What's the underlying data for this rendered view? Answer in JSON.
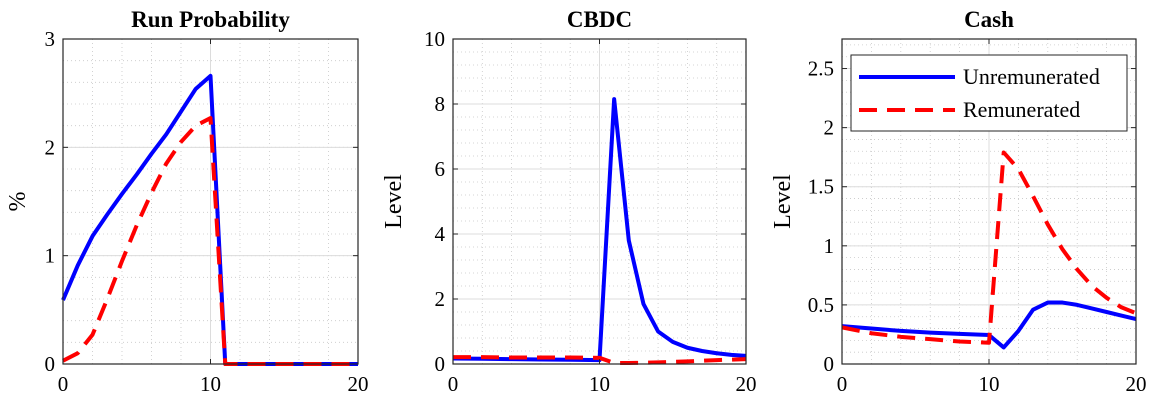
{
  "colors": {
    "unremunerated": "#0000ff",
    "remunerated": "#ff0000"
  },
  "legend": {
    "entries": [
      "Unremunerated",
      "Remunerated"
    ],
    "placement": "top-right",
    "panel": 2
  },
  "chart_data": [
    {
      "type": "line",
      "title": "Run Probability",
      "xlabel": "",
      "ylabel": "%",
      "xlim": [
        0,
        20
      ],
      "ylim": [
        0,
        3
      ],
      "xticks": [
        0,
        10,
        20
      ],
      "yticks": [
        0,
        1,
        2,
        3
      ],
      "yticklabels": [
        "0",
        "1",
        "2",
        "3"
      ],
      "grid": true,
      "series": [
        {
          "name": "Unremunerated",
          "style": "solid",
          "points": [
            [
              0,
              0.59
            ],
            [
              1,
              0.91
            ],
            [
              2,
              1.18
            ],
            [
              3,
              1.38
            ],
            [
              4,
              1.57
            ],
            [
              5,
              1.75
            ],
            [
              6,
              1.94
            ],
            [
              7,
              2.12
            ],
            [
              8,
              2.33
            ],
            [
              9,
              2.54
            ],
            [
              10,
              2.66
            ],
            [
              11,
              0
            ],
            [
              12,
              0
            ],
            [
              13,
              0
            ],
            [
              14,
              0
            ],
            [
              15,
              0
            ],
            [
              16,
              0
            ],
            [
              17,
              0
            ],
            [
              18,
              0
            ],
            [
              19,
              0
            ],
            [
              20,
              0
            ]
          ]
        },
        {
          "name": "Remunerated",
          "style": "dashed",
          "points": [
            [
              0,
              0.03
            ],
            [
              1,
              0.1
            ],
            [
              2,
              0.27
            ],
            [
              3,
              0.6
            ],
            [
              4,
              0.95
            ],
            [
              5,
              1.28
            ],
            [
              6,
              1.58
            ],
            [
              7,
              1.85
            ],
            [
              8,
              2.05
            ],
            [
              9,
              2.2
            ],
            [
              10,
              2.27
            ],
            [
              11,
              0
            ],
            [
              12,
              0
            ],
            [
              13,
              0
            ],
            [
              14,
              0
            ],
            [
              15,
              0
            ],
            [
              16,
              0
            ],
            [
              17,
              0
            ],
            [
              18,
              0
            ],
            [
              19,
              0
            ],
            [
              20,
              0
            ]
          ]
        }
      ]
    },
    {
      "type": "line",
      "title": "CBDC",
      "xlabel": "",
      "ylabel": "Level",
      "xlim": [
        0,
        20
      ],
      "ylim": [
        0,
        10
      ],
      "xticks": [
        0,
        10,
        20
      ],
      "yticks": [
        0,
        2,
        4,
        6,
        8,
        10
      ],
      "yticklabels": [
        "0",
        "2",
        "4",
        "6",
        "8",
        "10"
      ],
      "grid": true,
      "series": [
        {
          "name": "Unremunerated",
          "style": "solid",
          "points": [
            [
              0,
              0.17
            ],
            [
              2,
              0.16
            ],
            [
              4,
              0.15
            ],
            [
              6,
              0.14
            ],
            [
              8,
              0.13
            ],
            [
              10,
              0.12
            ],
            [
              11,
              8.15
            ],
            [
              12,
              3.8
            ],
            [
              13,
              1.85
            ],
            [
              14,
              1.0
            ],
            [
              15,
              0.68
            ],
            [
              16,
              0.5
            ],
            [
              17,
              0.4
            ],
            [
              18,
              0.33
            ],
            [
              19,
              0.28
            ],
            [
              20,
              0.25
            ]
          ]
        },
        {
          "name": "Remunerated",
          "style": "dashed",
          "points": [
            [
              0,
              0.21
            ],
            [
              2,
              0.21
            ],
            [
              4,
              0.2
            ],
            [
              6,
              0.2
            ],
            [
              8,
              0.2
            ],
            [
              10,
              0.19
            ],
            [
              11,
              0.03
            ],
            [
              12,
              0.03
            ],
            [
              14,
              0.05
            ],
            [
              16,
              0.08
            ],
            [
              18,
              0.12
            ],
            [
              20,
              0.15
            ]
          ]
        }
      ]
    },
    {
      "type": "line",
      "title": "Cash",
      "xlabel": "",
      "ylabel": "Level",
      "xlim": [
        0,
        20
      ],
      "ylim": [
        0,
        2.75
      ],
      "xticks": [
        0,
        10,
        20
      ],
      "yticks": [
        0,
        0.5,
        1,
        1.5,
        2,
        2.5
      ],
      "yticklabels": [
        "0",
        "0.5",
        "1",
        "1.5",
        "2",
        "2.5"
      ],
      "grid": true,
      "series": [
        {
          "name": "Unremunerated",
          "style": "solid",
          "points": [
            [
              0,
              0.32
            ],
            [
              2,
              0.3
            ],
            [
              4,
              0.28
            ],
            [
              6,
              0.265
            ],
            [
              8,
              0.255
            ],
            [
              10,
              0.245
            ],
            [
              11,
              0.14
            ],
            [
              12,
              0.28
            ],
            [
              13,
              0.46
            ],
            [
              14,
              0.52
            ],
            [
              15,
              0.52
            ],
            [
              16,
              0.5
            ],
            [
              17,
              0.47
            ],
            [
              18,
              0.44
            ],
            [
              19,
              0.41
            ],
            [
              20,
              0.38
            ]
          ]
        },
        {
          "name": "Remunerated",
          "style": "dashed",
          "points": [
            [
              0,
              0.31
            ],
            [
              2,
              0.26
            ],
            [
              4,
              0.23
            ],
            [
              6,
              0.21
            ],
            [
              8,
              0.19
            ],
            [
              10,
              0.18
            ],
            [
              11,
              1.79
            ],
            [
              12,
              1.65
            ],
            [
              13,
              1.42
            ],
            [
              14,
              1.18
            ],
            [
              15,
              0.97
            ],
            [
              16,
              0.8
            ],
            [
              17,
              0.66
            ],
            [
              18,
              0.56
            ],
            [
              19,
              0.48
            ],
            [
              20,
              0.43
            ]
          ]
        }
      ]
    }
  ]
}
